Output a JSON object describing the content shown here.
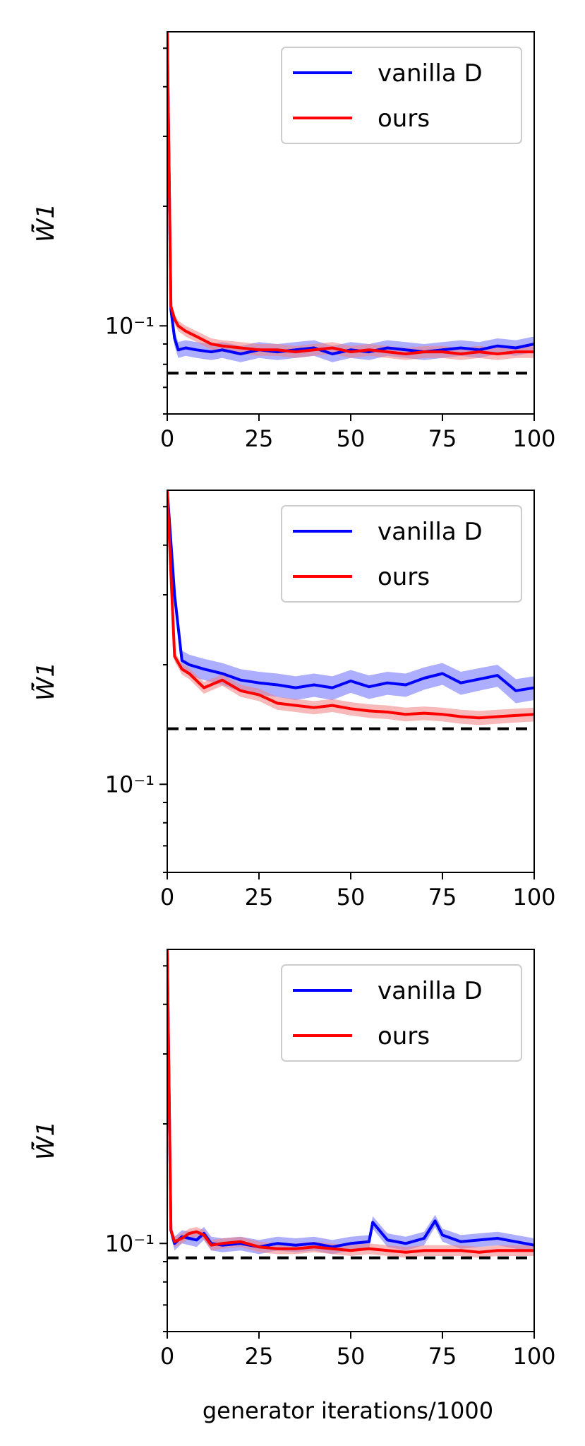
{
  "figure": {
    "xlabel": "generator iterations/1000"
  },
  "chart_data": [
    {
      "type": "line",
      "ylabel": "W̃̄1",
      "xlim": [
        0,
        100
      ],
      "ylim": [
        0.06,
        0.55
      ],
      "yscale": "log",
      "xticks": [
        0,
        25,
        50,
        75,
        100
      ],
      "yticks": [
        {
          "value": 0.1,
          "label": "10⁻¹"
        }
      ],
      "legend": {
        "placement": "top-right",
        "entries": [
          "vanilla D",
          "ours"
        ]
      },
      "reference_line": 0.076,
      "colors": {
        "blue": "#0000ff",
        "red": "#ff0000",
        "blue_band": "#6b6bff",
        "red_band": "#f08080"
      },
      "series": [
        {
          "name": "vanilla D",
          "x": [
            0,
            1,
            2,
            3,
            5,
            8,
            12,
            15,
            20,
            25,
            30,
            35,
            40,
            45,
            50,
            55,
            60,
            65,
            70,
            75,
            80,
            85,
            90,
            95,
            100
          ],
          "y": [
            0.55,
            0.11,
            0.093,
            0.087,
            0.088,
            0.087,
            0.086,
            0.087,
            0.085,
            0.087,
            0.086,
            0.087,
            0.088,
            0.085,
            0.087,
            0.086,
            0.088,
            0.087,
            0.086,
            0.087,
            0.088,
            0.087,
            0.089,
            0.088,
            0.09
          ],
          "band": 0.004
        },
        {
          "name": "ours",
          "x": [
            0,
            1,
            2,
            3,
            5,
            8,
            12,
            15,
            20,
            25,
            30,
            35,
            40,
            45,
            50,
            55,
            60,
            65,
            70,
            75,
            80,
            85,
            90,
            95,
            100
          ],
          "y": [
            0.55,
            0.112,
            0.104,
            0.1,
            0.097,
            0.094,
            0.09,
            0.089,
            0.088,
            0.087,
            0.087,
            0.086,
            0.087,
            0.088,
            0.086,
            0.087,
            0.086,
            0.085,
            0.086,
            0.086,
            0.085,
            0.086,
            0.085,
            0.086,
            0.086
          ],
          "band": 0.003
        }
      ]
    },
    {
      "type": "line",
      "ylabel": "W̃̄1",
      "xlim": [
        0,
        100
      ],
      "ylim": [
        0.06,
        0.55
      ],
      "yscale": "log",
      "xticks": [
        0,
        25,
        50,
        75,
        100
      ],
      "yticks": [
        {
          "value": 0.1,
          "label": "10⁻¹"
        }
      ],
      "legend": {
        "placement": "top-right",
        "entries": [
          "vanilla D",
          "ours"
        ]
      },
      "reference_line": 0.138,
      "colors": {
        "blue": "#0000ff",
        "red": "#ff0000",
        "blue_band": "#6b6bff",
        "red_band": "#f08080"
      },
      "series": [
        {
          "name": "vanilla D",
          "x": [
            0,
            2,
            4,
            6,
            10,
            15,
            20,
            25,
            30,
            35,
            40,
            45,
            50,
            55,
            60,
            65,
            70,
            75,
            80,
            85,
            90,
            95,
            100
          ],
          "y": [
            0.55,
            0.3,
            0.205,
            0.2,
            0.195,
            0.19,
            0.183,
            0.18,
            0.178,
            0.175,
            0.178,
            0.175,
            0.182,
            0.176,
            0.18,
            0.178,
            0.185,
            0.19,
            0.18,
            0.184,
            0.188,
            0.172,
            0.175
          ],
          "band": 0.012
        },
        {
          "name": "ours",
          "x": [
            0,
            2,
            4,
            6,
            10,
            15,
            20,
            25,
            30,
            35,
            40,
            45,
            50,
            55,
            60,
            65,
            70,
            75,
            80,
            85,
            90,
            95,
            100
          ],
          "y": [
            0.55,
            0.21,
            0.195,
            0.19,
            0.175,
            0.183,
            0.172,
            0.168,
            0.16,
            0.158,
            0.156,
            0.158,
            0.155,
            0.153,
            0.152,
            0.15,
            0.151,
            0.15,
            0.148,
            0.147,
            0.148,
            0.149,
            0.15
          ],
          "band": 0.006
        }
      ]
    },
    {
      "type": "line",
      "ylabel": "W̃̄1",
      "xlim": [
        0,
        100
      ],
      "ylim": [
        0.06,
        0.55
      ],
      "yscale": "log",
      "xticks": [
        0,
        25,
        50,
        75,
        100
      ],
      "yticks": [
        {
          "value": 0.1,
          "label": "10⁻¹"
        }
      ],
      "legend": {
        "placement": "top-right",
        "entries": [
          "vanilla D",
          "ours"
        ]
      },
      "reference_line": 0.092,
      "colors": {
        "blue": "#0000ff",
        "red": "#ff0000",
        "blue_band": "#6b6bff",
        "red_band": "#f08080"
      },
      "series": [
        {
          "name": "vanilla D",
          "x": [
            0,
            1,
            2,
            4,
            6,
            8,
            10,
            12,
            15,
            20,
            25,
            30,
            35,
            40,
            45,
            50,
            55,
            56,
            60,
            65,
            70,
            73,
            75,
            80,
            85,
            90,
            95,
            100
          ],
          "y": [
            0.55,
            0.108,
            0.1,
            0.104,
            0.103,
            0.102,
            0.106,
            0.1,
            0.099,
            0.1,
            0.098,
            0.1,
            0.099,
            0.1,
            0.098,
            0.1,
            0.101,
            0.113,
            0.102,
            0.1,
            0.103,
            0.114,
            0.105,
            0.101,
            0.102,
            0.103,
            0.101,
            0.099
          ],
          "band": 0.004
        },
        {
          "name": "ours",
          "x": [
            0,
            1,
            2,
            4,
            6,
            8,
            10,
            12,
            15,
            20,
            25,
            30,
            35,
            40,
            45,
            50,
            55,
            60,
            65,
            70,
            75,
            80,
            85,
            90,
            95,
            100
          ],
          "y": [
            0.55,
            0.108,
            0.101,
            0.103,
            0.106,
            0.107,
            0.105,
            0.099,
            0.1,
            0.101,
            0.098,
            0.097,
            0.097,
            0.098,
            0.097,
            0.096,
            0.097,
            0.096,
            0.095,
            0.096,
            0.096,
            0.096,
            0.095,
            0.096,
            0.096,
            0.096
          ],
          "band": 0.003
        }
      ]
    }
  ]
}
